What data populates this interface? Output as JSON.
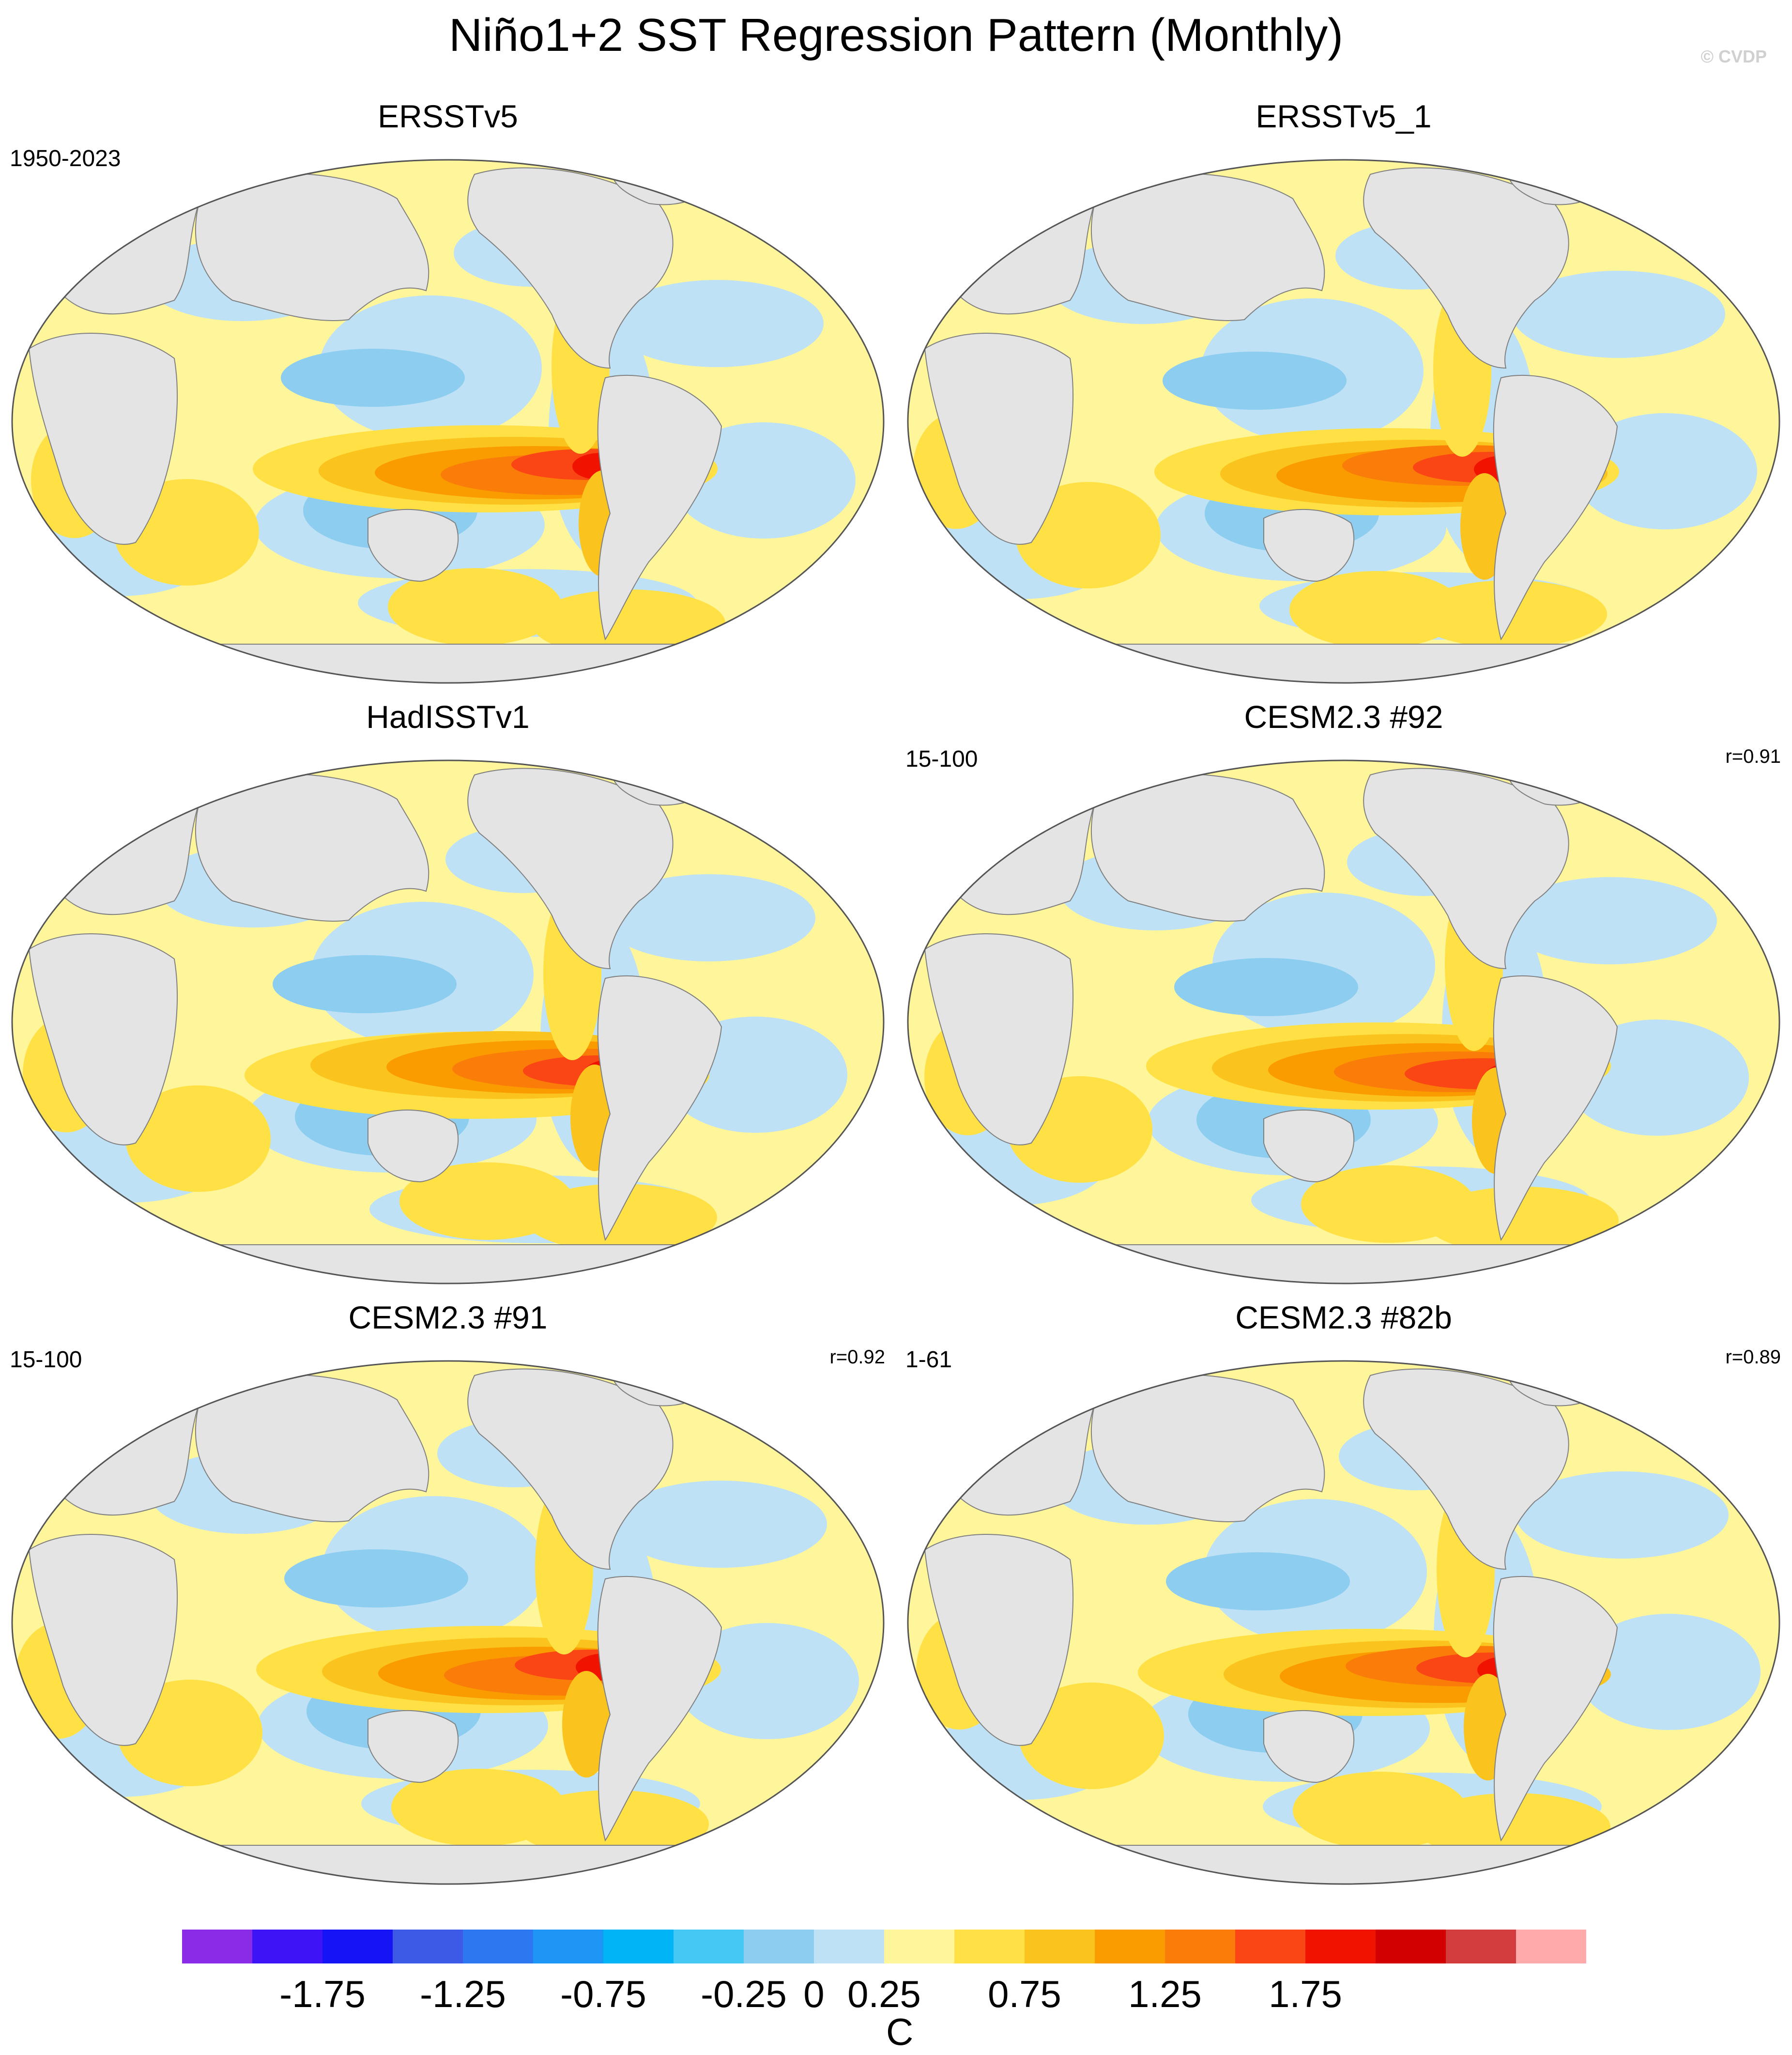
{
  "title": "Niño1+2 SST Regression Pattern (Monthly)",
  "watermark": "© CVDP",
  "panels": [
    {
      "title": "ERSSTv5",
      "period": "1950-2023",
      "corr": ""
    },
    {
      "title": "ERSSTv5_1",
      "period": "",
      "corr": ""
    },
    {
      "title": "HadISSTv1",
      "period": "",
      "corr": ""
    },
    {
      "title": "CESM2.3 #92",
      "period": "15-100",
      "corr": "r=0.91"
    },
    {
      "title": "CESM2.3 #91",
      "period": "15-100",
      "corr": "r=0.92"
    },
    {
      "title": "CESM2.3 #82b",
      "period": "1-61",
      "corr": "r=0.89"
    }
  ],
  "colorbar": {
    "unit": "C",
    "tick_labels": [
      "-1.75",
      "-1.25",
      "-0.75",
      "-0.25",
      "0",
      "0.25",
      "0.75",
      "1.25",
      "1.75"
    ],
    "tick_values": [
      -1.75,
      -1.25,
      -0.75,
      -0.25,
      0,
      0.25,
      0.75,
      1.25,
      1.75
    ],
    "colors": [
      "#8a2be8",
      "#3c14f5",
      "#1414f5",
      "#3c5ae6",
      "#2d78f0",
      "#1e96f5",
      "#00b4f5",
      "#46c8f5",
      "#8ccdf0",
      "#bee1f5",
      "#fff59b",
      "#ffe146",
      "#fac31e",
      "#fa9b00",
      "#fa7d0a",
      "#fa4614",
      "#f01400",
      "#d20000",
      "#d23c3c",
      "#ffaaaa"
    ],
    "levels": [
      -2.0,
      -1.75,
      -1.5,
      -1.25,
      -1.0,
      -0.75,
      -0.5,
      -0.25,
      0,
      0.25,
      0.5,
      0.75,
      1.0,
      1.25,
      1.5,
      1.75,
      2.0
    ]
  },
  "colors": {
    "land": "#e4e4e4",
    "coast": "#808080",
    "frame": "#555555"
  }
}
